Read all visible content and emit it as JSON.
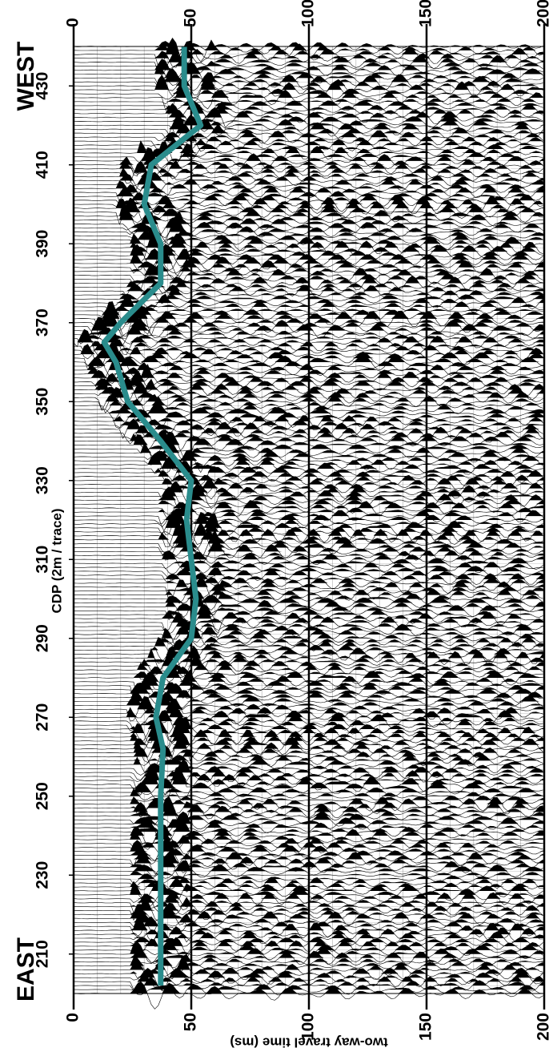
{
  "chart_data": {
    "type": "line",
    "labels": {
      "east": "EAST",
      "west": "WEST"
    },
    "x_label": "CDP (2m / trace)",
    "y_label": "two-way travel time (ms)",
    "xlim": [
      200,
      440
    ],
    "xticks": [
      210,
      230,
      250,
      270,
      290,
      310,
      330,
      350,
      370,
      390,
      410,
      430
    ],
    "ylim": [
      0,
      200
    ],
    "yticks": [
      0,
      50,
      100,
      150,
      200
    ],
    "x": [
      202,
      210,
      230,
      250,
      262,
      270,
      280,
      290,
      300,
      310,
      320,
      330,
      340,
      350,
      360,
      365,
      370,
      380,
      390,
      400,
      410,
      420,
      430,
      440
    ],
    "series": [
      {
        "color": "#2a8c8c",
        "values": [
          37,
          37,
          37,
          37,
          38,
          35,
          38,
          50,
          52,
          50,
          48,
          50,
          37,
          23,
          18,
          13,
          20,
          37,
          37,
          30,
          33,
          54,
          47,
          47
        ]
      }
    ],
    "grid": true
  }
}
